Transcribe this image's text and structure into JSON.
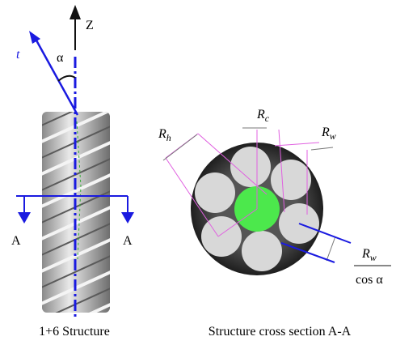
{
  "labels": {
    "z_axis": "Z",
    "t_axis": "t",
    "angle": "α",
    "section_left": "A",
    "section_right": "A"
  },
  "radii": {
    "helix": {
      "symbol": "R",
      "subscript": "h"
    },
    "core": {
      "symbol": "R",
      "subscript": "c"
    },
    "wire": {
      "symbol": "R",
      "subscript": "w"
    }
  },
  "fraction": {
    "numerator": {
      "symbol": "R",
      "subscript": "w"
    },
    "denominator": "cos α"
  },
  "captions": {
    "left": "1+6 Structure",
    "right": "Structure cross section A-A"
  }
}
